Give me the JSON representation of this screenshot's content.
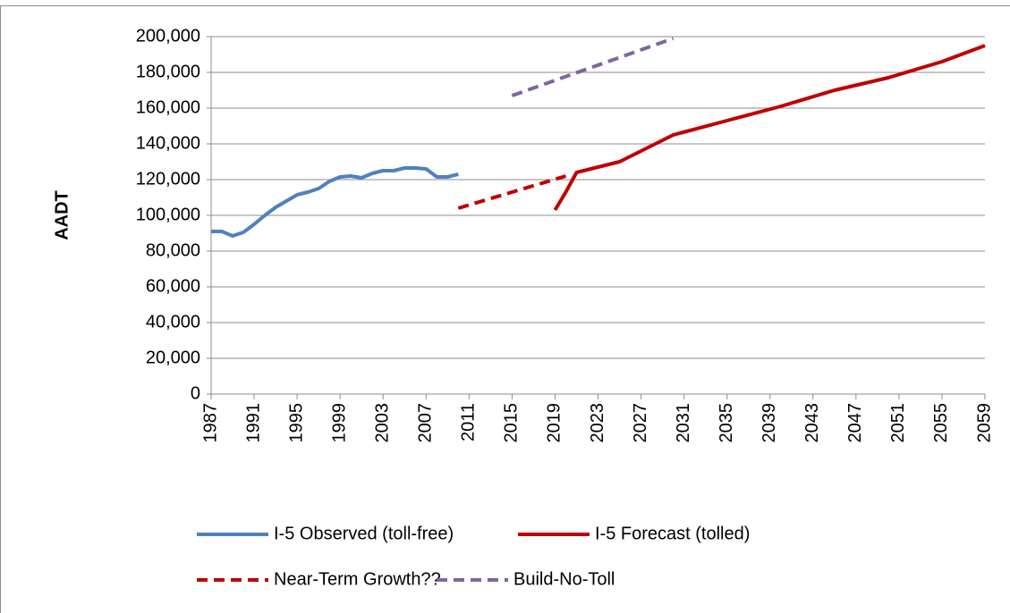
{
  "chart_data": {
    "type": "line",
    "y_label": "AADT",
    "xlim": [
      1987,
      2059
    ],
    "xticks": [
      1987,
      1991,
      1995,
      1999,
      2003,
      2007,
      2011,
      2015,
      2019,
      2023,
      2027,
      2031,
      2035,
      2039,
      2043,
      2047,
      2051,
      2055,
      2059
    ],
    "ylim": [
      0,
      200000
    ],
    "yticks": [
      {
        "value": 0,
        "label": "0"
      },
      {
        "value": 20000,
        "label": "20,000"
      },
      {
        "value": 40000,
        "label": "40,000"
      },
      {
        "value": 60000,
        "label": "60,000"
      },
      {
        "value": 80000,
        "label": "80,000"
      },
      {
        "value": 100000,
        "label": "100,000"
      },
      {
        "value": 120000,
        "label": "120,000"
      },
      {
        "value": 140000,
        "label": "140,000"
      },
      {
        "value": 160000,
        "label": "160,000"
      },
      {
        "value": 180000,
        "label": "180,000"
      },
      {
        "value": 200000,
        "label": "200,000"
      }
    ],
    "grid": true,
    "series": [
      {
        "name": "I-5 Observed (toll-free)",
        "color": "#4f81bd",
        "dashed": false,
        "x": [
          1987,
          1988,
          1989,
          1990,
          1991,
          1992,
          1993,
          1994,
          1995,
          1996,
          1997,
          1998,
          1999,
          2000,
          2001,
          2002,
          2003,
          2004,
          2005,
          2006,
          2007,
          2008,
          2009,
          2010
        ],
        "values": [
          91000,
          91000,
          88500,
          90500,
          95000,
          100000,
          104500,
          108000,
          111500,
          113000,
          115000,
          119000,
          121500,
          122000,
          121000,
          123500,
          125000,
          125000,
          126500,
          126500,
          126000,
          121500,
          121500,
          123000
        ]
      },
      {
        "name": "I-5 Forecast (tolled)",
        "color": "#c00000",
        "dashed": false,
        "x": [
          2019,
          2020,
          2021,
          2025,
          2030,
          2035,
          2040,
          2045,
          2050,
          2055,
          2059
        ],
        "values": [
          103000,
          113000,
          124000,
          130000,
          145000,
          153000,
          161000,
          170000,
          177000,
          186000,
          195000
        ]
      },
      {
        "name": "Near-Term Growth??",
        "color": "#c00000",
        "dashed": true,
        "x": [
          2010,
          2015,
          2020
        ],
        "values": [
          104000,
          113000,
          122000
        ]
      },
      {
        "name": "Build-No-Toll",
        "color": "#8064a2",
        "dashed": true,
        "x": [
          2015,
          2030
        ],
        "values": [
          167000,
          199000
        ]
      }
    ]
  }
}
